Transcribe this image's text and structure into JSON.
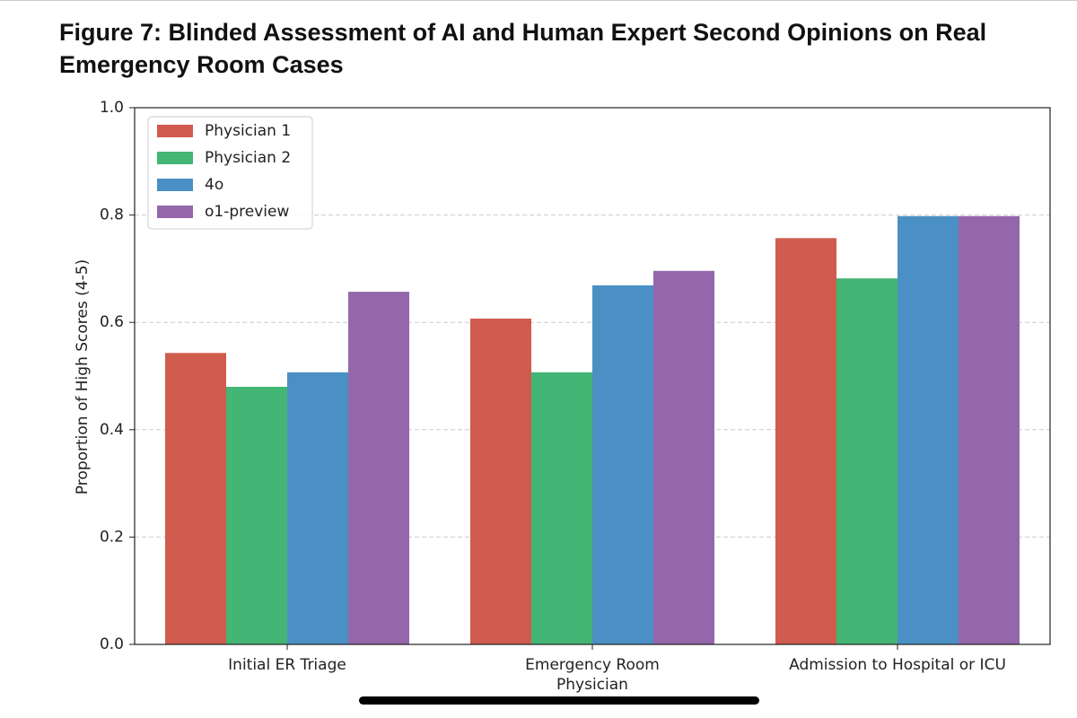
{
  "chart_data": {
    "type": "bar",
    "title": "Figure 7: Blinded Assessment of AI and Human Expert Second Opinions on Real Emergency Room Cases",
    "y_label": "Proportion of High Scores (4-5)",
    "categories": [
      "Initial ER Triage",
      "Emergency Room\nPhysician",
      "Admission to Hospital or ICU"
    ],
    "series": [
      {
        "name": "Physician 1",
        "color": "#d05c4e",
        "values": [
          0.543,
          0.607,
          0.757
        ]
      },
      {
        "name": "Physician 2",
        "color": "#43b574",
        "values": [
          0.48,
          0.507,
          0.682
        ]
      },
      {
        "name": "4o",
        "color": "#4a90c4",
        "values": [
          0.507,
          0.669,
          0.798
        ]
      },
      {
        "name": "o1-preview",
        "color": "#9467aa",
        "values": [
          0.657,
          0.696,
          0.798
        ]
      }
    ],
    "ylim": [
      0,
      1
    ],
    "yticks": [
      {
        "value": 0,
        "label": "0.0"
      },
      0.2,
      0.4,
      0.6,
      0.8,
      {
        "value": 1,
        "label": "1.0"
      }
    ],
    "grid": true,
    "legend": "upper left"
  }
}
